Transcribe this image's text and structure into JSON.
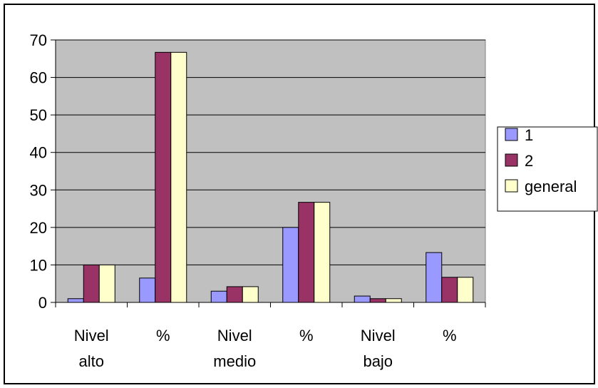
{
  "chart_data": {
    "type": "bar",
    "categories": [
      [
        "Nivel",
        "alto"
      ],
      [
        "%"
      ],
      [
        "Nivel",
        "medio"
      ],
      [
        "%"
      ],
      [
        "Nivel",
        "bajo"
      ],
      [
        "%"
      ]
    ],
    "series": [
      {
        "name": "1",
        "color": "#9999ff",
        "values": [
          1,
          6.5,
          3,
          20,
          1.7,
          13.3
        ]
      },
      {
        "name": "2",
        "color": "#993366",
        "values": [
          10,
          66.7,
          4.2,
          26.7,
          1,
          6.7
        ]
      },
      {
        "name": "general",
        "color": "#ffffcc",
        "values": [
          10,
          66.7,
          4.2,
          26.7,
          1,
          6.7
        ]
      }
    ],
    "ylim": [
      0,
      70
    ],
    "yticks": [
      0,
      10,
      20,
      30,
      40,
      50,
      60,
      70
    ],
    "grid": true,
    "plot_background": "#c0c0c0",
    "legend_position": "right"
  }
}
